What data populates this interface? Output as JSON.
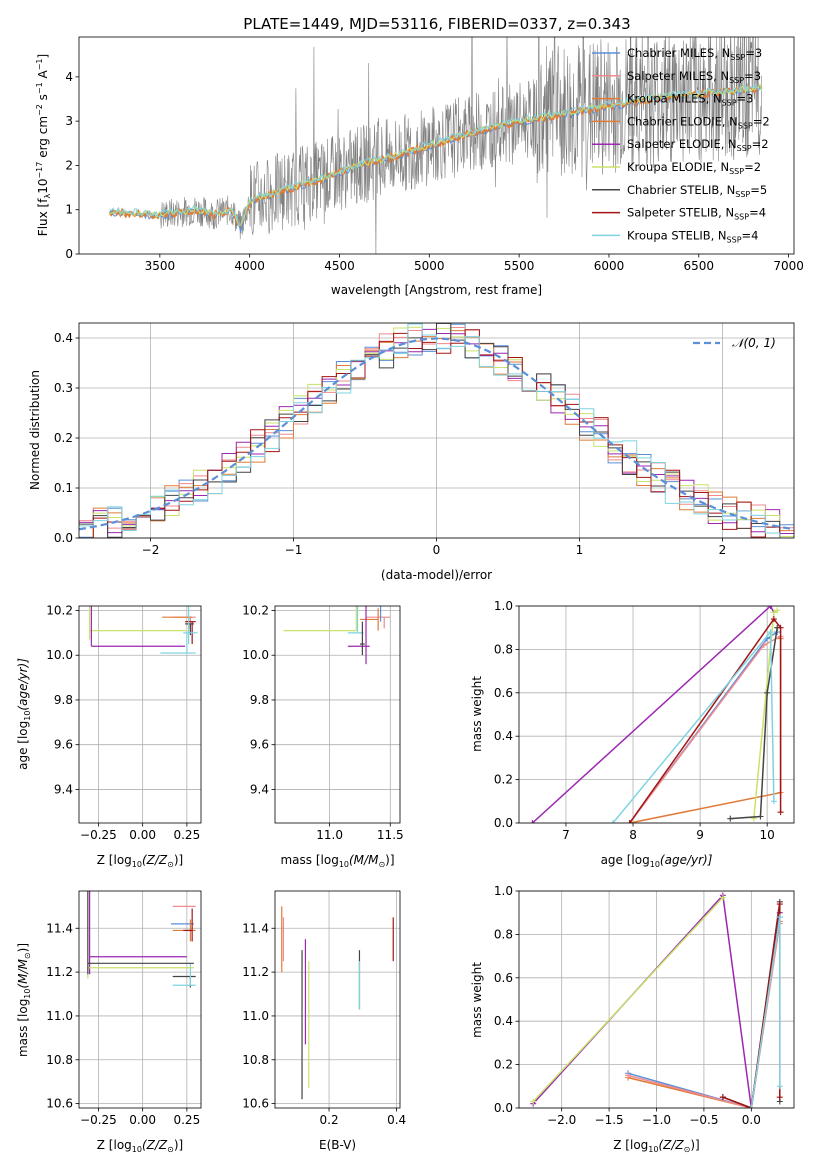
{
  "figure": {
    "title": "PLATE=1449, MJD=53116, FIBERID=0337, z=0.343"
  },
  "legend_entries": [
    {
      "prefix": "Chabrier MILES, N",
      "sub": "SSP",
      "suffix": "=3",
      "color": "#5b8fd8"
    },
    {
      "prefix": "Salpeter MILES, N",
      "sub": "SSP",
      "suffix": "=3",
      "color": "#f08a8f"
    },
    {
      "prefix": "Kroupa MILES, N",
      "sub": "SSP",
      "suffix": "=3",
      "color": "#e07b39"
    },
    {
      "prefix": "Chabrier ELODIE, N",
      "sub": "SSP",
      "suffix": "=2",
      "color": "#e07b39"
    },
    {
      "prefix": "Salpeter ELODIE, N",
      "sub": "SSP",
      "suffix": "=2",
      "color": "#9c27b0"
    },
    {
      "prefix": "Kroupa ELODIE, N",
      "sub": "SSP",
      "suffix": "=2",
      "color": "#c8e26a"
    },
    {
      "prefix": "Chabrier STELIB, N",
      "sub": "SSP",
      "suffix": "=5",
      "color": "#444444"
    },
    {
      "prefix": "Salpeter STELIB, N",
      "sub": "SSP",
      "suffix": "=4",
      "color": "#a31515"
    },
    {
      "prefix": "Kroupa STELIB, N",
      "sub": "SSP",
      "suffix": "=4",
      "color": "#7fd3e0"
    }
  ],
  "chart_data": [
    {
      "id": "spectrum",
      "type": "line",
      "xlabel": "wavelength [Angstrom, rest frame]",
      "ylabel": "Flux [f",
      "ylabel_sub": "λ",
      "ylabel_rest": "10",
      "ylabel_sup1": "−17",
      "ylabel_mid": " erg cm",
      "ylabel_sup2": "−2",
      "ylabel_mid2": " s",
      "ylabel_sup3": "−1",
      "ylabel_end": " A",
      "ylabel_sup4": "−1",
      "ylabel_close": "]",
      "xlim": [
        3050,
        7030
      ],
      "ylim": [
        0,
        4.9
      ],
      "xticks": [
        3500,
        4000,
        4500,
        5000,
        5500,
        6000,
        6500,
        7000
      ],
      "yticks": [
        0,
        1,
        2,
        3,
        4
      ],
      "grid": false,
      "data_color": "#808080",
      "model_colors": [
        "#5b8fd8",
        "#e07b39",
        "#c8e26a",
        "#7fd3e0"
      ],
      "model_knots": [
        [
          3220,
          0.95
        ],
        [
          3500,
          0.88
        ],
        [
          3700,
          1.0
        ],
        [
          3800,
          0.9
        ],
        [
          3900,
          1.0
        ],
        [
          3950,
          0.6
        ],
        [
          4000,
          1.2
        ],
        [
          4200,
          1.45
        ],
        [
          4400,
          1.7
        ],
        [
          4600,
          2.0
        ],
        [
          4800,
          2.2
        ],
        [
          5000,
          2.45
        ],
        [
          5200,
          2.7
        ],
        [
          5500,
          3.0
        ],
        [
          5800,
          3.2
        ],
        [
          6000,
          3.35
        ],
        [
          6300,
          3.55
        ],
        [
          6600,
          3.65
        ],
        [
          6850,
          3.75
        ]
      ]
    },
    {
      "id": "residual_hist",
      "type": "bar",
      "xlabel": "(data-model)/error",
      "ylabel": "Normed distribution",
      "xlim": [
        -2.5,
        2.5
      ],
      "ylim": [
        0,
        0.43
      ],
      "xticks": [
        -2,
        -1,
        0,
        1,
        2
      ],
      "xtick_labels": [
        "−2",
        "−1",
        "0",
        "1",
        "2"
      ],
      "yticks": [
        0.0,
        0.1,
        0.2,
        0.3,
        0.4
      ],
      "ytick_labels": [
        "0.0",
        "0.1",
        "0.2",
        "0.3",
        "0.4"
      ],
      "grid": true,
      "bin_width": 0.1,
      "gaussian_label": "𝒩(0, 1)",
      "gaussian_color": "#5b8fd8",
      "hist_colors": [
        "#5b8fd8",
        "#f08a8f",
        "#e07b39",
        "#9c27b0",
        "#c8e26a",
        "#444444",
        "#a31515",
        "#7fd3e0"
      ]
    },
    {
      "id": "age_vs_Z",
      "type": "scatter",
      "xlabel": "Z [log",
      "xlabel_sub": "10",
      "xlabel_rest": "(Z/Z",
      "xlabel_sub2": "⊙",
      "xlabel_end": ")]",
      "ylabel": "age  [log",
      "ylabel_sub": "10",
      "ylabel_rest": "(age/yr)]",
      "xlim": [
        -0.36,
        0.33
      ],
      "ylim": [
        9.25,
        10.22
      ],
      "xticks": [
        -0.25,
        0.0,
        0.25
      ],
      "xtick_labels": [
        "−0.25",
        "0.00",
        "0.25"
      ],
      "yticks": [
        9.4,
        9.6,
        9.8,
        10.0,
        10.2
      ],
      "ytick_labels": [
        "9.4",
        "9.6",
        "9.8",
        "10.0",
        "10.2"
      ],
      "grid": true,
      "errorbars": [
        {
          "x": 0.27,
          "y": 10.17,
          "xerr": [
            0.1,
            0.03
          ],
          "yerr": [
            0.05,
            0.0
          ],
          "color": "#f08a8f"
        },
        {
          "x": 0.26,
          "y": 10.17,
          "xerr": [
            0.15,
            0.02
          ],
          "yerr": [
            0.05,
            0.0
          ],
          "color": "#e07b39"
        },
        {
          "x": 0.28,
          "y": 10.15,
          "xerr": [
            0.04,
            0.02
          ],
          "yerr": [
            0.1,
            0.0
          ],
          "color": "#a31515"
        },
        {
          "x": 0.27,
          "y": 10.14,
          "xerr": [
            0.03,
            0.02
          ],
          "yerr": [
            0.05,
            0.0
          ],
          "color": "#444444"
        },
        {
          "x": 0.26,
          "y": 10.1,
          "xerr": [
            0.03,
            0.05
          ],
          "yerr": [
            0.05,
            0.2
          ],
          "color": "#7fd3e0"
        },
        {
          "x": 0.25,
          "y": 10.01,
          "xerr": [
            0.15,
            0.05
          ],
          "yerr": [
            0.0,
            0.1
          ],
          "color": "#7fd3e0"
        },
        {
          "x": -0.3,
          "y": 10.11,
          "xerr": [
            0.0,
            0.55
          ],
          "yerr": [
            0.04,
            0.81
          ],
          "color": "#c8e26a"
        },
        {
          "x": -0.29,
          "y": 10.04,
          "xerr": [
            0.0,
            0.53
          ],
          "yerr": [
            0.0,
            0.38
          ],
          "color": "#9c27b0"
        }
      ]
    },
    {
      "id": "age_vs_mass",
      "type": "scatter",
      "xlabel": "mass [log",
      "xlabel_sub": "10",
      "xlabel_rest": "(M/M",
      "xlabel_sub2": "⊙",
      "xlabel_end": ")]",
      "xlim": [
        10.55,
        11.58
      ],
      "ylim": [
        9.25,
        10.22
      ],
      "xticks": [
        11.0,
        11.5
      ],
      "xtick_labels": [
        "11.0",
        "11.5"
      ],
      "yticks": [
        9.4,
        9.6,
        9.8,
        10.0,
        10.2
      ],
      "ytick_labels": [
        "9.4",
        "9.6",
        "9.8",
        "10.0",
        "10.2"
      ],
      "grid": true,
      "errorbars": [
        {
          "x": 11.45,
          "y": 10.17,
          "xerr": [
            0.15,
            0.05
          ],
          "yerr": [
            0.05,
            0.0
          ],
          "color": "#f08a8f"
        },
        {
          "x": 11.4,
          "y": 10.16,
          "xerr": [
            0.15,
            0.0
          ],
          "yerr": [
            0.05,
            0.05
          ],
          "color": "#e07b39"
        },
        {
          "x": 11.42,
          "y": 10.15,
          "xerr": [
            0.0,
            0.0
          ],
          "yerr": [
            0.0,
            0.08
          ],
          "color": "#5b8fd8"
        },
        {
          "x": 11.22,
          "y": 10.11,
          "xerr": [
            0.6,
            0.0
          ],
          "yerr": [
            0.0,
            0.81
          ],
          "color": "#c8e26a"
        },
        {
          "x": 11.3,
          "y": 10.04,
          "xerr": [
            0.15,
            0.03
          ],
          "yerr": [
            0.08,
            0.38
          ],
          "color": "#9c27b0"
        },
        {
          "x": 11.23,
          "y": 10.1,
          "xerr": [
            0.08,
            0.05
          ],
          "yerr": [
            0.0,
            0.2
          ],
          "color": "#7fd3e0"
        },
        {
          "x": 11.27,
          "y": 10.05,
          "xerr": [
            0.02,
            0.02
          ],
          "yerr": [
            0.05,
            0.1
          ],
          "color": "#444444"
        }
      ]
    },
    {
      "id": "cum_weight_vs_age",
      "type": "line",
      "xlabel": "age  [log",
      "xlabel_sub": "10",
      "xlabel_rest": "(age/yr)]",
      "ylabel": "mass weight",
      "xlim": [
        6.3,
        10.4
      ],
      "ylim": [
        0,
        1
      ],
      "xticks": [
        7,
        8,
        9,
        10
      ],
      "yticks": [
        0.0,
        0.2,
        0.4,
        0.6,
        0.8,
        1.0
      ],
      "ytick_labels": [
        "0.0",
        "0.2",
        "0.4",
        "0.6",
        "0.8",
        "1.0"
      ],
      "grid": true,
      "series": [
        {
          "color": "#5b8fd8",
          "x": [
            7.95,
            10.0,
            10.15
          ],
          "y": [
            0.0,
            0.85,
            0.88
          ]
        },
        {
          "color": "#f08a8f",
          "x": [
            7.95,
            9.95,
            10.2
          ],
          "y": [
            0.0,
            0.82,
            0.86
          ]
        },
        {
          "color": "#e07b39",
          "x": [
            7.95,
            10.2,
            10.2
          ],
          "y": [
            0.0,
            0.14,
            0.85
          ]
        },
        {
          "color": "#9c27b0",
          "x": [
            6.5,
            10.05,
            10.1
          ],
          "y": [
            0.0,
            1.0,
            0.97
          ]
        },
        {
          "color": "#c8e26a",
          "x": [
            9.8,
            10.1,
            10.15
          ],
          "y": [
            0.02,
            0.97,
            0.98
          ]
        },
        {
          "color": "#444444",
          "x": [
            9.45,
            9.9,
            10.0,
            10.15
          ],
          "y": [
            0.02,
            0.03,
            0.6,
            0.9
          ]
        },
        {
          "color": "#a31515",
          "x": [
            7.95,
            10.1,
            10.2,
            10.2
          ],
          "y": [
            0.0,
            0.94,
            0.9,
            0.05
          ]
        },
        {
          "color": "#7fd3e0",
          "x": [
            7.7,
            10.05,
            10.1
          ],
          "y": [
            0.0,
            0.88,
            0.1
          ]
        }
      ]
    },
    {
      "id": "mass_vs_Z",
      "type": "scatter",
      "xlabel": "Z [log",
      "xlabel_sub": "10",
      "xlabel_rest": "(Z/Z",
      "xlabel_sub2": "⊙",
      "xlabel_end": ")]",
      "ylabel": "mass [log",
      "ylabel_sub": "10",
      "ylabel_rest": "(M/M",
      "ylabel_sub2": "⊙",
      "ylabel_end": ")]",
      "xlim": [
        -0.36,
        0.33
      ],
      "ylim": [
        10.58,
        11.57
      ],
      "xticks": [
        -0.25,
        0.0,
        0.25
      ],
      "xtick_labels": [
        "−0.25",
        "0.00",
        "0.25"
      ],
      "yticks": [
        10.6,
        10.8,
        11.0,
        11.2,
        11.4
      ],
      "ytick_labels": [
        "10.6",
        "10.8",
        "11.0",
        "11.2",
        "11.4"
      ],
      "grid": true,
      "errorbars": [
        {
          "x": 0.27,
          "y": 11.5,
          "xerr": [
            0.1,
            0.03
          ],
          "yerr": [
            0.0,
            0.0
          ],
          "color": "#f08a8f"
        },
        {
          "x": 0.26,
          "y": 11.42,
          "xerr": [
            0.1,
            0.03
          ],
          "yerr": [
            0.0,
            0.0
          ],
          "color": "#5b8fd8"
        },
        {
          "x": 0.27,
          "y": 11.39,
          "xerr": [
            0.1,
            0.03
          ],
          "yerr": [
            0.05,
            0.05
          ],
          "color": "#e07b39"
        },
        {
          "x": 0.28,
          "y": 11.39,
          "xerr": [
            0.05,
            0.0
          ],
          "yerr": [
            0.05,
            0.1
          ],
          "color": "#a31515"
        },
        {
          "x": 0.27,
          "y": 11.18,
          "xerr": [
            0.1,
            0.03
          ],
          "yerr": [
            0.05,
            0.0
          ],
          "color": "#444444"
        },
        {
          "x": 0.27,
          "y": 11.14,
          "xerr": [
            0.1,
            0.03
          ],
          "yerr": [
            0.0,
            0.1
          ],
          "color": "#7fd3e0"
        },
        {
          "x": -0.3,
          "y": 11.27,
          "xerr": [
            0.0,
            0.55
          ],
          "yerr": [
            0.08,
            0.4
          ],
          "color": "#9c27b0"
        },
        {
          "x": -0.31,
          "y": 11.22,
          "xerr": [
            0.0,
            0.6
          ],
          "yerr": [
            0.05,
            0.55
          ],
          "color": "#c8e26a"
        },
        {
          "x": -0.31,
          "y": 11.24,
          "xerr": [
            0.0,
            0.6
          ],
          "yerr": [
            0.05,
            0.6
          ],
          "color": "#444444"
        }
      ]
    },
    {
      "id": "mass_vs_ebv",
      "type": "scatter",
      "xlabel": "E(B-V)",
      "xlim": [
        0.04,
        0.41
      ],
      "ylim": [
        10.58,
        11.57
      ],
      "xticks": [
        0.2,
        0.4
      ],
      "xtick_labels": [
        "0.2",
        "0.4"
      ],
      "yticks": [
        10.6,
        10.8,
        11.0,
        11.2,
        11.4
      ],
      "ytick_labels": [
        "10.6",
        "10.8",
        "11.0",
        "11.2",
        "11.4"
      ],
      "grid": true,
      "errorbars": [
        {
          "x": 0.06,
          "y": 11.4,
          "xerr": [
            0.0,
            0.0
          ],
          "yerr": [
            0.2,
            0.1
          ],
          "color": "#e07b39"
        },
        {
          "x": 0.065,
          "y": 11.35,
          "xerr": [
            0.0,
            0.0
          ],
          "yerr": [
            0.1,
            0.1
          ],
          "color": "#f08a8f"
        },
        {
          "x": 0.12,
          "y": 11.15,
          "xerr": [
            0.0,
            0.0
          ],
          "yerr": [
            0.53,
            0.15
          ],
          "color": "#444444"
        },
        {
          "x": 0.13,
          "y": 11.2,
          "xerr": [
            0.0,
            0.0
          ],
          "yerr": [
            0.33,
            0.15
          ],
          "color": "#9c27b0"
        },
        {
          "x": 0.14,
          "y": 11.1,
          "xerr": [
            0.0,
            0.0
          ],
          "yerr": [
            0.43,
            0.15
          ],
          "color": "#c8e26a"
        },
        {
          "x": 0.29,
          "y": 11.2,
          "xerr": [
            0.0,
            0.0
          ],
          "yerr": [
            0.17,
            0.1
          ],
          "color": "#444444"
        },
        {
          "x": 0.29,
          "y": 11.15,
          "xerr": [
            0.0,
            0.0
          ],
          "yerr": [
            0.12,
            0.1
          ],
          "color": "#7fd3e0"
        },
        {
          "x": 0.39,
          "y": 11.35,
          "xerr": [
            0.0,
            0.0
          ],
          "yerr": [
            0.1,
            0.1
          ],
          "color": "#a31515"
        }
      ]
    },
    {
      "id": "cum_weight_vs_Z",
      "type": "line",
      "xlabel": "Z [log",
      "xlabel_sub": "10",
      "xlabel_rest": "(Z/Z",
      "xlabel_sub2": "⊙",
      "xlabel_end": ")]",
      "ylabel": "mass weight",
      "xlim": [
        -2.45,
        0.45
      ],
      "ylim": [
        0,
        1
      ],
      "xticks": [
        -2.0,
        -1.5,
        -1.0,
        -0.5,
        0.0
      ],
      "xtick_labels": [
        "−2.0",
        "−1.5",
        "−1.0",
        "−0.5",
        "0.0"
      ],
      "yticks": [
        0.0,
        0.2,
        0.4,
        0.6,
        0.8,
        1.0
      ],
      "ytick_labels": [
        "0.0",
        "0.2",
        "0.4",
        "0.6",
        "0.8",
        "1.0"
      ],
      "grid": true,
      "series": [
        {
          "color": "#5b8fd8",
          "x": [
            -1.3,
            0.0,
            0.3
          ],
          "y": [
            0.16,
            0.0,
            0.88
          ]
        },
        {
          "color": "#e07b39",
          "x": [
            -1.3,
            0.0,
            0.3
          ],
          "y": [
            0.14,
            0.0,
            0.86
          ]
        },
        {
          "color": "#f08a8f",
          "x": [
            -1.3,
            0.0,
            0.3
          ],
          "y": [
            0.15,
            0.0,
            0.85
          ]
        },
        {
          "color": "#9c27b0",
          "x": [
            -2.3,
            -0.3,
            0.0,
            0.3
          ],
          "y": [
            0.02,
            0.98,
            0.0,
            0.9
          ]
        },
        {
          "color": "#c8e26a",
          "x": [
            -2.3,
            -0.3
          ],
          "y": [
            0.03,
            0.97
          ]
        },
        {
          "color": "#444444",
          "x": [
            -0.3,
            0.0,
            0.3,
            0.3
          ],
          "y": [
            0.05,
            0.0,
            0.95,
            0.03
          ]
        },
        {
          "color": "#a31515",
          "x": [
            -0.3,
            0.0,
            0.3,
            0.3
          ],
          "y": [
            0.05,
            0.0,
            0.94,
            0.05
          ]
        },
        {
          "color": "#7fd3e0",
          "x": [
            0.0,
            0.3,
            0.3
          ],
          "y": [
            0.0,
            0.88,
            0.1
          ]
        }
      ]
    }
  ]
}
